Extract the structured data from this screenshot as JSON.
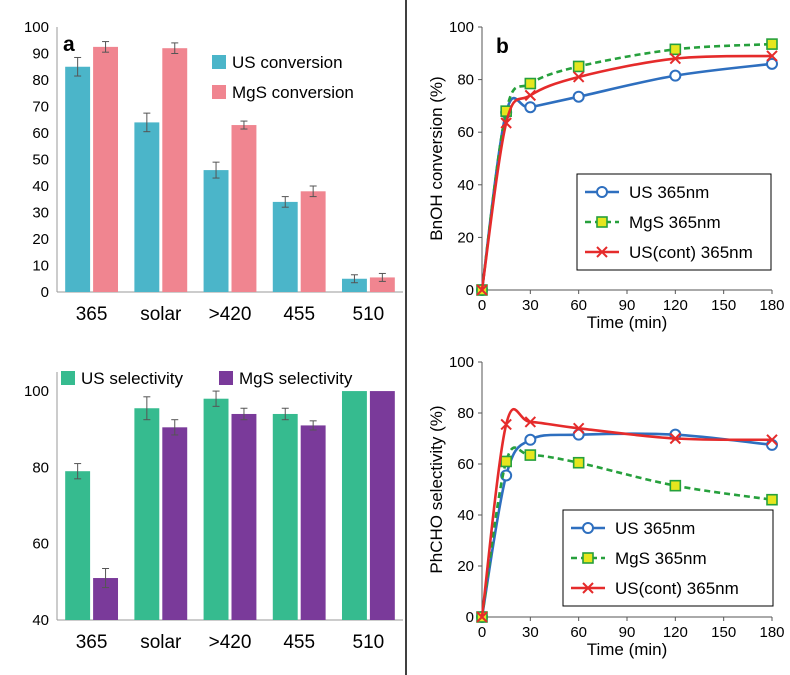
{
  "chart_data": [
    {
      "panel_label": "a",
      "type": "bar",
      "categories": [
        "365",
        "solar",
        ">420",
        "455",
        "510"
      ],
      "ylim": [
        0,
        100
      ],
      "yticks": [
        0,
        10,
        20,
        30,
        40,
        50,
        60,
        70,
        80,
        90,
        100
      ],
      "legend": "top-right",
      "series": [
        {
          "name": "US conversion",
          "color": "#4bb5c9",
          "values": [
            85,
            64,
            46,
            34,
            5
          ],
          "errors": [
            3.5,
            3.5,
            3,
            2,
            1.5
          ]
        },
        {
          "name": "MgS conversion",
          "color": "#f08590",
          "values": [
            92.5,
            92,
            63,
            38,
            5.5
          ],
          "errors": [
            2,
            2,
            1.5,
            2,
            1.5
          ]
        }
      ]
    },
    {
      "panel_label": "",
      "type": "bar",
      "categories": [
        "365",
        "solar",
        ">420",
        "455",
        "510"
      ],
      "ylim": [
        40,
        105
      ],
      "yticks": [
        40,
        60,
        80,
        100
      ],
      "legend": "top",
      "series": [
        {
          "name": "US selectivity",
          "color": "#36bb8f",
          "values": [
            79,
            95.5,
            98,
            94,
            100
          ],
          "errors": [
            2,
            3,
            2,
            1.5,
            0
          ]
        },
        {
          "name": "MgS selectivity",
          "color": "#7a3a9a",
          "values": [
            51,
            90.5,
            94,
            91,
            100
          ],
          "errors": [
            2.5,
            2,
            1.5,
            1.2,
            0
          ]
        }
      ]
    },
    {
      "panel_label": "b",
      "type": "line",
      "xlabel": "Time (min)",
      "ylabel": "BnOH conversion (%)",
      "xlim": [
        0,
        180
      ],
      "ylim": [
        0,
        100
      ],
      "xticks": [
        0,
        30,
        60,
        90,
        120,
        150,
        180
      ],
      "yticks": [
        0,
        20,
        40,
        60,
        80,
        100
      ],
      "legend": "bottom-right",
      "series": [
        {
          "name": "US 365nm",
          "color": "#2e6fbf",
          "marker": "circle",
          "dash": "solid",
          "x": [
            0,
            15,
            30,
            60,
            120,
            180
          ],
          "y": [
            0,
            67.5,
            69.5,
            73.5,
            81.5,
            86
          ]
        },
        {
          "name": "MgS 365nm",
          "color": "#26a03c",
          "marker": "square",
          "dash": "dashed",
          "x": [
            0,
            15,
            30,
            60,
            120,
            180
          ],
          "y": [
            0,
            68,
            78.5,
            85,
            91.5,
            93.5
          ]
        },
        {
          "name": "US(cont) 365nm",
          "color": "#e52b2b",
          "marker": "x",
          "dash": "solid",
          "x": [
            0,
            15,
            30,
            60,
            120,
            180
          ],
          "y": [
            0,
            63.5,
            74,
            81,
            88,
            89
          ]
        }
      ]
    },
    {
      "panel_label": "",
      "type": "line",
      "xlabel": "Time (min)",
      "ylabel": "PhCHO selectivity (%)",
      "xlim": [
        0,
        180
      ],
      "ylim": [
        0,
        100
      ],
      "xticks": [
        0,
        30,
        60,
        90,
        120,
        150,
        180
      ],
      "yticks": [
        0,
        20,
        40,
        60,
        80,
        100
      ],
      "legend": "bottom-right",
      "series": [
        {
          "name": "US 365nm",
          "color": "#2e6fbf",
          "marker": "circle",
          "dash": "solid",
          "x": [
            0,
            15,
            30,
            60,
            120,
            180
          ],
          "y": [
            0,
            55.5,
            69.5,
            71.5,
            71.5,
            67.5
          ]
        },
        {
          "name": "MgS 365nm",
          "color": "#26a03c",
          "marker": "square",
          "dash": "dashed",
          "x": [
            0,
            15,
            30,
            60,
            120,
            180
          ],
          "y": [
            0,
            61,
            63.5,
            60.5,
            51.5,
            46
          ]
        },
        {
          "name": "US(cont) 365nm",
          "color": "#e52b2b",
          "marker": "x",
          "dash": "solid",
          "x": [
            0,
            15,
            30,
            60,
            120,
            180
          ],
          "y": [
            0,
            75.5,
            76.5,
            74,
            70,
            69.5
          ]
        }
      ]
    }
  ]
}
